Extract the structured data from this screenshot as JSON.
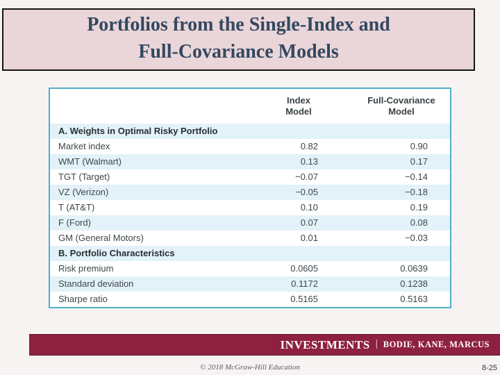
{
  "title": {
    "line1": "Portfolios from the Single-Index and",
    "line2": "Full-Covariance Models"
  },
  "table": {
    "columns": [
      {
        "line1": "Index",
        "line2": "Model"
      },
      {
        "line1": "Full-Covariance",
        "line2": "Model"
      }
    ],
    "rows": [
      {
        "type": "section",
        "label": "A. Weights in Optimal Risky Portfolio",
        "index_model": "",
        "full_covariance": ""
      },
      {
        "type": "data",
        "label": "Market index",
        "index_model": "0.82",
        "full_covariance": "0.90"
      },
      {
        "type": "data",
        "label": "WMT (Walmart)",
        "index_model": "0.13",
        "full_covariance": "0.17"
      },
      {
        "type": "data",
        "label": "TGT (Target)",
        "index_model": "−0.07",
        "full_covariance": "−0.14"
      },
      {
        "type": "data",
        "label": "VZ (Verizon)",
        "index_model": "−0.05",
        "full_covariance": "−0.18"
      },
      {
        "type": "data",
        "label": "T (AT&T)",
        "index_model": "0.10",
        "full_covariance": "0.19"
      },
      {
        "type": "data",
        "label": "F (Ford)",
        "index_model": "0.07",
        "full_covariance": "0.08"
      },
      {
        "type": "data",
        "label": "GM (General Motors)",
        "index_model": "0.01",
        "full_covariance": "−0.03"
      },
      {
        "type": "section",
        "label": "B. Portfolio Characteristics",
        "index_model": "",
        "full_covariance": ""
      },
      {
        "type": "data",
        "label": "Risk premium",
        "index_model": "0.0605",
        "full_covariance": "0.0639"
      },
      {
        "type": "data",
        "label": "Standard deviation",
        "index_model": "0.1172",
        "full_covariance": "0.1238"
      },
      {
        "type": "data",
        "label": "Sharpe ratio",
        "index_model": "0.5165",
        "full_covariance": "0.5163"
      }
    ]
  },
  "footer": {
    "brand": "INVESTMENTS",
    "separator": "|",
    "authors": "BODIE, KANE, MARCUS"
  },
  "copyright": "© 2018 McGraw-Hill Education",
  "page_number": "8-25",
  "colors": {
    "title_bg": "#EAD5D9",
    "title_text": "#33495F",
    "table_border": "#4FAECB",
    "row_shade": "#E3F2F9",
    "footer_bg": "#8E2140",
    "footer_text": "#FFFFFF"
  }
}
